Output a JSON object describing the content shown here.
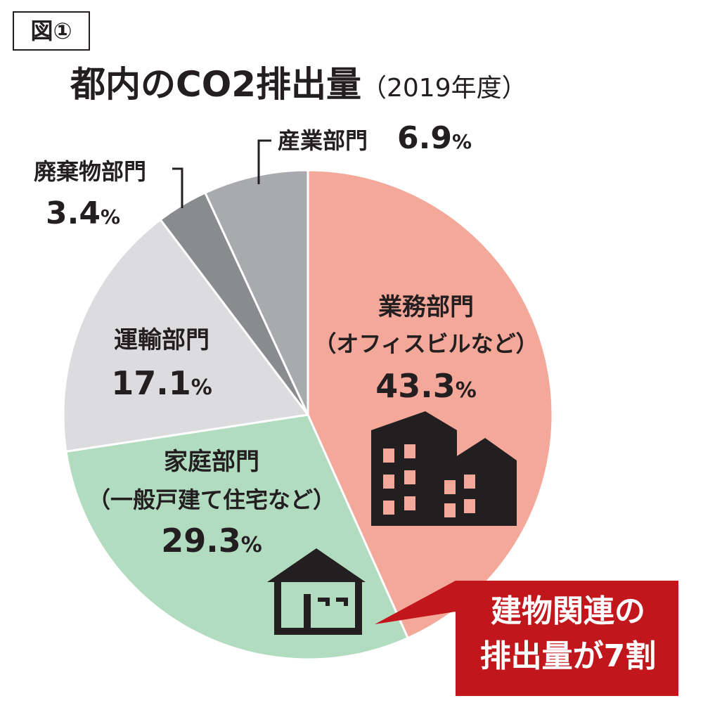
{
  "figure_label": "図①",
  "title": "都内のCO2排出量",
  "title_note": "（2019年度）",
  "callout": {
    "line1": "建物関連の",
    "line2": "排出量が7割",
    "color": "#c0161c"
  },
  "chart_data": {
    "type": "pie",
    "title": "都内のCO2排出量（2019年度）",
    "unit": "%",
    "start": "12 o'clock",
    "direction": "clockwise",
    "slices": [
      {
        "label": "業務部門",
        "sublabel": "（オフィスビルなど）",
        "value": 43.3,
        "value_text": "43.3",
        "color": "#f4a89a",
        "icon": "office-building-icon"
      },
      {
        "label": "家庭部門",
        "sublabel": "（一般戸建て住宅など）",
        "value": 29.3,
        "value_text": "29.3",
        "color": "#b2dcc0",
        "icon": "house-icon"
      },
      {
        "label": "運輸部門",
        "sublabel": "",
        "value": 17.1,
        "value_text": "17.1",
        "color": "#dcdcdf",
        "icon": ""
      },
      {
        "label": "廃棄物部門",
        "sublabel": "",
        "value": 3.4,
        "value_text": "3.4",
        "color": "#8a8b8e",
        "icon": ""
      },
      {
        "label": "産業部門",
        "sublabel": "",
        "value": 6.9,
        "value_text": "6.9",
        "color": "#a9aaad",
        "icon": ""
      }
    ]
  }
}
